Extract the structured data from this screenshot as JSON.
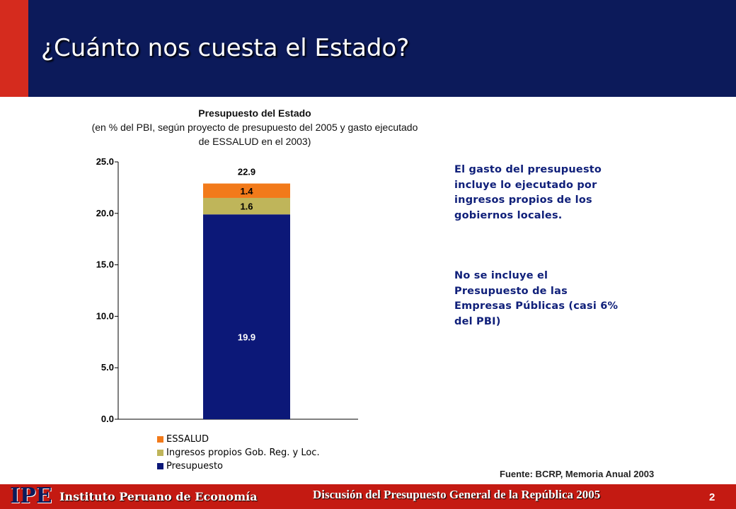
{
  "header": {
    "title": "¿Cuánto nos cuesta el Estado?"
  },
  "chart_data": {
    "type": "bar",
    "stacked": true,
    "title": "Presupuesto del Estado",
    "subtitle": "(en % del PBI, según proyecto de presupuesto del 2005 y gasto ejecutado de ESSALUD en el 2003)",
    "ylim": [
      0,
      25
    ],
    "yticks": [
      "0.0",
      "5.0",
      "10.0",
      "15.0",
      "20.0",
      "25.0"
    ],
    "ytick_values": [
      0,
      5,
      10,
      15,
      20,
      25
    ],
    "categories": [
      ""
    ],
    "series": [
      {
        "name": "Presupuesto",
        "values": [
          19.9
        ],
        "label": "19.9",
        "color": "#0c1878",
        "label_color": "#ffffff"
      },
      {
        "name": "Ingresos propios Gob. Reg. y Loc.",
        "values": [
          1.6
        ],
        "label": "1.6",
        "color": "#bfb55a",
        "label_color": "#000000"
      },
      {
        "name": "ESSALUD",
        "values": [
          1.4
        ],
        "label": "1.4",
        "color": "#f27a1a",
        "label_color": "#000000"
      }
    ],
    "total_label": "22.9",
    "legend_position": "bottom-left",
    "legend": [
      {
        "label": "ESSALUD",
        "color": "#f27a1a"
      },
      {
        "label": "Ingresos propios Gob. Reg. y Loc.",
        "color": "#bfb55a"
      },
      {
        "label": "Presupuesto",
        "color": "#0c1878"
      }
    ]
  },
  "notes": {
    "note1": "El gasto del presupuesto incluye lo ejecutado por ingresos propios de los gobiernos locales.",
    "note2": "No se incluye el Presupuesto de las Empresas Públicas (casi 6% del PBI)"
  },
  "source": "Fuente: BCRP, Memoria Anual 2003",
  "footer": {
    "logo": "IPE",
    "org": "Instituto Peruano de Economía",
    "event": "Discusión del Presupuesto General de la República 2005",
    "page_number": "2"
  },
  "colors": {
    "header_bg": "#0c1a5a",
    "accent_red": "#d52b1e",
    "note_text": "#10207a"
  }
}
